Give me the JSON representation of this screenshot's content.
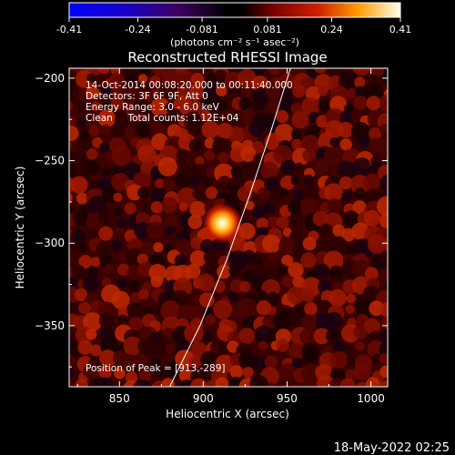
{
  "chart_data": {
    "type": "heatmap",
    "title": "Reconstructed RHESSI Image",
    "xlabel": "Heliocentric X (arcsec)",
    "ylabel": "Heliocentric Y (arcsec)",
    "xlim": [
      820,
      1010
    ],
    "ylim": [
      -387,
      -194
    ],
    "xticks": [
      850,
      900,
      950,
      1000
    ],
    "yticks": [
      -200,
      -250,
      -300,
      -350
    ],
    "colorbar": {
      "min": -0.41,
      "max": 0.41,
      "ticks": [
        "-0.41",
        "-0.24",
        "-0.081",
        "0.081",
        "0.24",
        "0.41"
      ],
      "unit_label": "(photons cm⁻² s⁻¹ asec⁻²)"
    },
    "annotations": [
      "14-Oct-2014 00:08:20.000 to 00:11:40.000",
      "Detectors: 3F 6F 9F, Att 0",
      "Energy Range: 3.0 - 6.0 keV",
      "Clean     Total counts: 1.12E+04"
    ],
    "peak_label": "Position of Peak = [913,-289]",
    "peak": {
      "x": 913,
      "y": -289,
      "value": 0.41
    },
    "limb_line": [
      [
        880,
        -387
      ],
      [
        898,
        -350
      ],
      [
        914,
        -310
      ],
      [
        928,
        -270
      ],
      [
        941,
        -230
      ],
      [
        952,
        -194
      ]
    ]
  },
  "footer": {
    "timestamp": "18-May-2022 02:25"
  }
}
